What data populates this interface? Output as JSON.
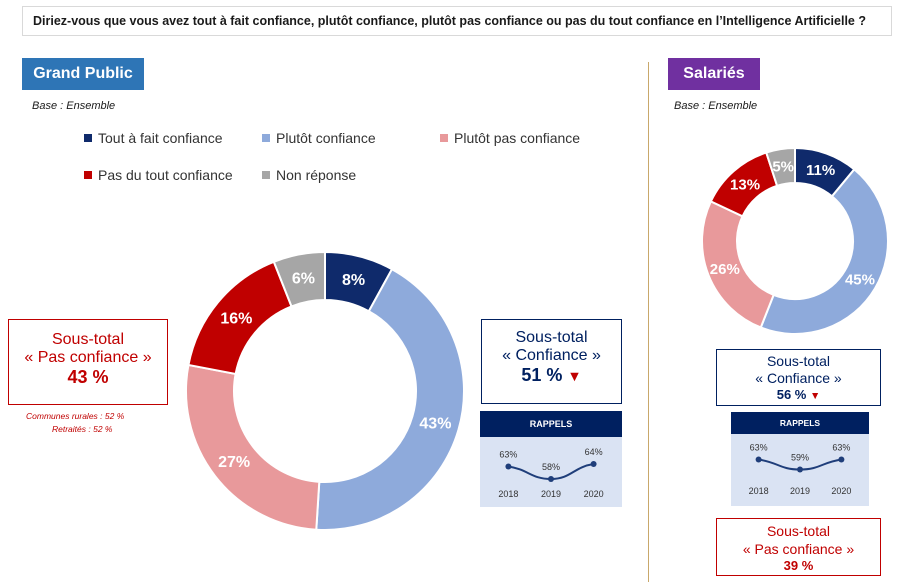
{
  "question": "Diriez-vous que vous avez tout à fait confiance, plutôt confiance, plutôt pas confiance ou pas du tout confiance en l’Intelligence Artificielle ?",
  "legend": [
    {
      "label": "Tout à fait confiance",
      "color": "#0f2a6b"
    },
    {
      "label": "Plutôt confiance",
      "color": "#8eaadb"
    },
    {
      "label": "Plutôt pas confiance",
      "color": "#e8999b"
    },
    {
      "label": "Pas du tout confiance",
      "color": "#c00000"
    },
    {
      "label": "Non réponse",
      "color": "#a6a6a6"
    }
  ],
  "grand_public": {
    "title": "Grand Public",
    "base": "Base : Ensemble",
    "pas_confiance": {
      "label1": "Sous-total",
      "label2": "« Pas confiance »",
      "value": "43 %"
    },
    "notes": [
      "Communes rurales : 52 %",
      "Retraités : 52 %"
    ],
    "confiance": {
      "label1": "Sous-total",
      "label2": "« Confiance »",
      "value": "51 %",
      "trend": "▼"
    },
    "rappels": {
      "title": "RAPPELS",
      "years": [
        "2018",
        "2019",
        "2020"
      ],
      "values": [
        63,
        58,
        64
      ]
    }
  },
  "salaries": {
    "title": "Salariés",
    "base": "Base : Ensemble",
    "confiance": {
      "label1": "Sous-total",
      "label2": "« Confiance »",
      "value": "56 %",
      "trend": "▼"
    },
    "rappels": {
      "title": "RAPPELS",
      "years": [
        "2018",
        "2019",
        "2020"
      ],
      "values": [
        63,
        59,
        63
      ]
    },
    "pas_confiance": {
      "label1": "Sous-total",
      "label2": "« Pas confiance »",
      "value": "39 %"
    }
  },
  "chart_data": [
    {
      "type": "pie",
      "title": "Grand Public",
      "categories": [
        "Tout à fait confiance",
        "Plutôt confiance",
        "Plutôt pas confiance",
        "Pas du tout confiance",
        "Non réponse"
      ],
      "values": [
        8,
        43,
        27,
        16,
        6
      ],
      "labels": [
        "8%",
        "43%",
        "27%",
        "16%",
        "6%"
      ],
      "label_colors": [
        "#ffffff",
        "#ffffff",
        "#ffffff",
        "#ffffff",
        "#ffffff"
      ]
    },
    {
      "type": "pie",
      "title": "Salariés",
      "categories": [
        "Tout à fait confiance",
        "Plutôt confiance",
        "Plutôt pas confiance",
        "Pas du tout confiance",
        "Non réponse"
      ],
      "values": [
        11,
        45,
        26,
        13,
        5
      ],
      "labels": [
        "11%",
        "45%",
        "26%",
        "13%",
        "5%"
      ],
      "label_colors": [
        "#ffffff",
        "#ffffff",
        "#ffffff",
        "#ffffff",
        "#ffffff"
      ]
    },
    {
      "type": "line",
      "title": "RAPPELS",
      "x": [
        "2018",
        "2019",
        "2020"
      ],
      "series": [
        {
          "values": [
            63,
            58,
            64
          ]
        }
      ]
    },
    {
      "type": "line",
      "title": "RAPPELS",
      "x": [
        "2018",
        "2019",
        "2020"
      ],
      "series": [
        {
          "values": [
            63,
            59,
            63
          ]
        }
      ]
    }
  ]
}
